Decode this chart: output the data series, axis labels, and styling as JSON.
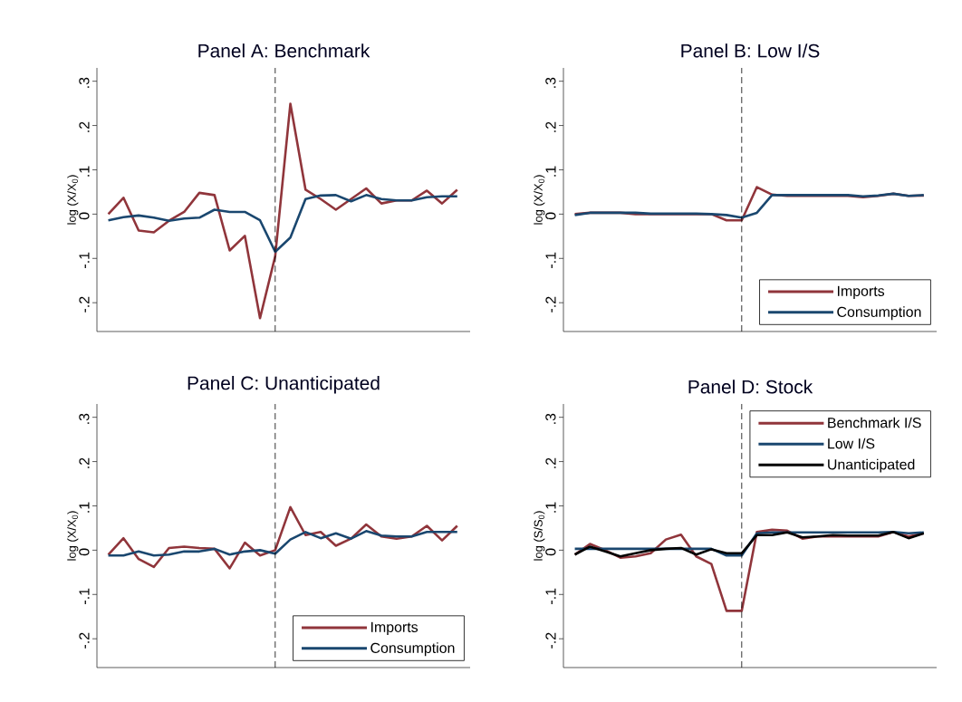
{
  "chart_data": [
    {
      "type": "line",
      "title": "Panel A: Benchmark",
      "ylabel": "log (X/X$_{0}$)",
      "categories": [
        null,
        null,
        null,
        null,
        null,
        null,
        null,
        null,
        null,
        null,
        null,
        null,
        null,
        null,
        null,
        null,
        null,
        null,
        null,
        null,
        null,
        null,
        null,
        null
      ],
      "ylim": [
        -0.265,
        0.33
      ],
      "yticks": [
        {
          "value": -0.2,
          "label": "-.2"
        },
        {
          "value": -0.1,
          "label": "-.1"
        },
        {
          "value": 0,
          "label": "0"
        },
        {
          "value": 0.1,
          "label": ".1"
        },
        {
          "value": 0.2,
          "label": ".2"
        },
        {
          "value": 0.3,
          "label": ".3"
        }
      ],
      "tick_labels": "y",
      "legend": false,
      "series": [
        {
          "color": "#90353b",
          "values": [
            0.0,
            0.037,
            -0.037,
            -0.041,
            -0.015,
            0.005,
            0.048,
            0.043,
            -0.082,
            -0.049,
            -0.235,
            -0.095,
            0.249,
            0.055,
            0.034,
            0.01,
            0.034,
            0.058,
            0.024,
            0.031,
            0.031,
            0.053,
            0.024,
            0.055
          ]
        },
        {
          "color": "#1a476f",
          "values": [
            -0.014,
            -0.007,
            -0.003,
            -0.008,
            -0.015,
            -0.01,
            -0.008,
            0.01,
            0.005,
            0.005,
            -0.014,
            -0.085,
            -0.053,
            0.034,
            0.042,
            0.043,
            0.029,
            0.043,
            0.034,
            0.031,
            0.031,
            0.038,
            0.04,
            0.04
          ]
        }
      ]
    },
    {
      "type": "line",
      "title": "Panel B: Low I/S",
      "ylabel": "log (X/X$_{0}$)",
      "categories": [
        null,
        null,
        null,
        null,
        null,
        null,
        null,
        null,
        null,
        null,
        null,
        null,
        null,
        null,
        null,
        null,
        null,
        null,
        null,
        null,
        null,
        null,
        null,
        null
      ],
      "ylim": [
        -0.265,
        0.33
      ],
      "yticks": [
        {
          "value": -0.2,
          "label": "-.2"
        },
        {
          "value": -0.1,
          "label": "-.1"
        },
        {
          "value": 0,
          "label": "0"
        },
        {
          "value": 0.1,
          "label": ".1"
        },
        {
          "value": 0.2,
          "label": ".2"
        },
        {
          "value": 0.3,
          "label": ".3"
        }
      ],
      "tick_labels": "y",
      "legend": "bottom right",
      "series": [
        {
          "name": "Imports",
          "color": "#90353b",
          "values": [
            0.0,
            0.003,
            0.003,
            0.003,
            0.0,
            0.0,
            0.0,
            0.0,
            0.0,
            0.0,
            -0.014,
            -0.014,
            0.061,
            0.044,
            0.041,
            0.041,
            0.041,
            0.041,
            0.041,
            0.038,
            0.041,
            0.046,
            0.041,
            0.042
          ]
        },
        {
          "name": "Consumption",
          "color": "#1a476f",
          "values": [
            -0.002,
            0.003,
            0.003,
            0.003,
            0.003,
            0.001,
            0.001,
            0.001,
            0.001,
            0.0,
            -0.002,
            -0.008,
            0.003,
            0.043,
            0.043,
            0.043,
            0.043,
            0.043,
            0.043,
            0.04,
            0.042,
            0.046,
            0.041,
            0.043
          ]
        }
      ]
    },
    {
      "type": "line",
      "title": "Panel C: Unanticipated",
      "ylabel": "log (X/X$_{0}$)",
      "categories": [
        null,
        null,
        null,
        null,
        null,
        null,
        null,
        null,
        null,
        null,
        null,
        null,
        null,
        null,
        null,
        null,
        null,
        null,
        null,
        null,
        null,
        null,
        null,
        null
      ],
      "ylim": [
        -0.265,
        0.33
      ],
      "yticks": [
        {
          "value": -0.2,
          "label": "-.2"
        },
        {
          "value": -0.1,
          "label": "-.1"
        },
        {
          "value": 0,
          "label": "0"
        },
        {
          "value": 0.1,
          "label": ".1"
        },
        {
          "value": 0.2,
          "label": ".2"
        },
        {
          "value": 0.3,
          "label": ".3"
        }
      ],
      "tick_labels": "y",
      "legend": "bottom right",
      "series": [
        {
          "name": "Imports",
          "color": "#90353b",
          "values": [
            -0.01,
            0.027,
            -0.02,
            -0.038,
            0.005,
            0.008,
            0.005,
            0.003,
            -0.041,
            0.017,
            -0.012,
            0.0,
            0.097,
            0.034,
            0.041,
            0.01,
            0.026,
            0.058,
            0.031,
            0.026,
            0.031,
            0.055,
            0.022,
            0.055
          ]
        },
        {
          "name": "Consumption",
          "color": "#1a476f",
          "values": [
            -0.012,
            -0.012,
            -0.003,
            -0.012,
            -0.01,
            -0.003,
            -0.003,
            0.003,
            -0.01,
            -0.003,
            0.0,
            -0.008,
            0.024,
            0.041,
            0.027,
            0.038,
            0.026,
            0.043,
            0.033,
            0.031,
            0.031,
            0.041,
            0.041,
            0.041
          ]
        }
      ]
    },
    {
      "type": "line",
      "title": "Panel D: Stock",
      "ylabel": "log (S/S$_{0}$)",
      "categories": [
        null,
        null,
        null,
        null,
        null,
        null,
        null,
        null,
        null,
        null,
        null,
        null,
        null,
        null,
        null,
        null,
        null,
        null,
        null,
        null,
        null,
        null,
        null,
        null
      ],
      "ylim": [
        -0.265,
        0.33
      ],
      "yticks": [
        {
          "value": -0.2,
          "label": "-.2"
        },
        {
          "value": -0.1,
          "label": "-.1"
        },
        {
          "value": 0,
          "label": "0"
        },
        {
          "value": 0.1,
          "label": ".1"
        },
        {
          "value": 0.2,
          "label": ".2"
        },
        {
          "value": 0.3,
          "label": ".3"
        }
      ],
      "tick_labels": "y",
      "legend": "top right",
      "series": [
        {
          "name": "Benchmark I/S",
          "color": "#90353b",
          "values": [
            -0.01,
            0.014,
            0.0,
            -0.017,
            -0.014,
            -0.007,
            0.024,
            0.035,
            -0.014,
            -0.031,
            -0.137,
            -0.137,
            0.041,
            0.046,
            0.044,
            0.026,
            0.031,
            0.031,
            0.031,
            0.031,
            0.031,
            0.041,
            0.031,
            0.038
          ]
        },
        {
          "name": "Low I/S",
          "color": "#1a476f",
          "values": [
            0.003,
            0.003,
            0.003,
            0.003,
            0.003,
            0.003,
            0.003,
            0.003,
            0.003,
            0.003,
            -0.012,
            -0.012,
            0.038,
            0.04,
            0.04,
            0.04,
            0.04,
            0.04,
            0.04,
            0.04,
            0.04,
            0.041,
            0.038,
            0.04
          ]
        },
        {
          "name": "Unanticipated",
          "color": "#000000",
          "values": [
            -0.01,
            0.008,
            -0.003,
            -0.014,
            -0.007,
            0.0,
            0.003,
            0.005,
            -0.01,
            0.002,
            -0.007,
            -0.007,
            0.034,
            0.034,
            0.04,
            0.029,
            0.031,
            0.034,
            0.033,
            0.033,
            0.033,
            0.041,
            0.027,
            0.038
          ]
        }
      ]
    }
  ]
}
